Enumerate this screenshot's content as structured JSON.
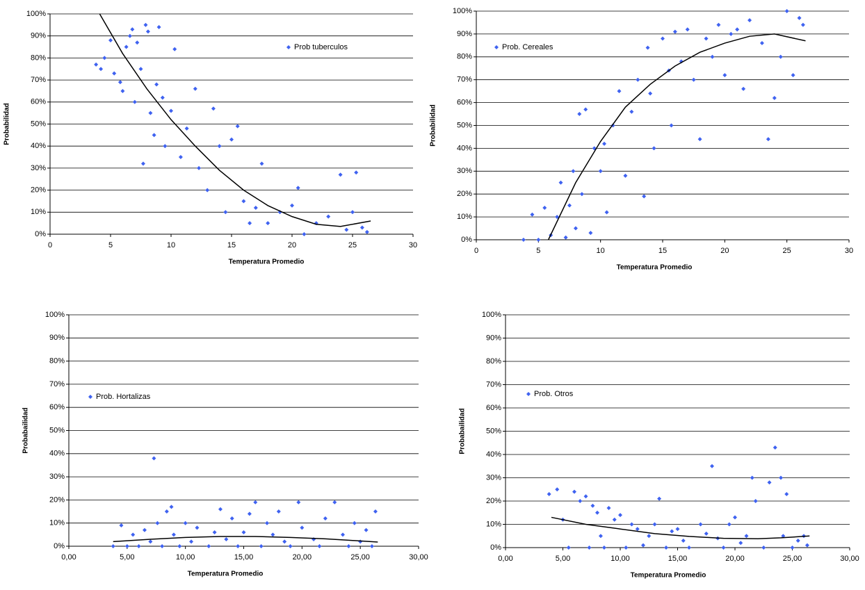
{
  "chart_data": [
    {
      "type": "scatter",
      "x_label": "Temperatura Promedio",
      "y_label": "Probabilidad",
      "grid": true,
      "legend": "upper right",
      "xlim": [
        0,
        30
      ],
      "xticks": [
        0,
        5,
        10,
        15,
        20,
        25,
        30
      ],
      "ylim": [
        0,
        100
      ],
      "yticks": [
        {
          "value": 0,
          "label": "0%"
        },
        {
          "value": 10,
          "label": "10%"
        },
        {
          "value": 20,
          "label": "20%"
        },
        {
          "value": 30,
          "label": "30%"
        },
        {
          "value": 40,
          "label": "40%"
        },
        {
          "value": 50,
          "label": "50%"
        },
        {
          "value": 60,
          "label": "60%"
        },
        {
          "value": 70,
          "label": "70%"
        },
        {
          "value": 80,
          "label": "80%"
        },
        {
          "value": 90,
          "label": "90%"
        },
        {
          "value": 100,
          "label": "100%"
        }
      ],
      "series": [
        {
          "name": "Prob tuberculos",
          "color": "#3f62f0",
          "x": [
            3.8,
            4.2,
            4.5,
            5,
            5.3,
            5.8,
            6,
            6.3,
            6.6,
            6.8,
            7,
            7.2,
            7.5,
            7.7,
            7.9,
            8.1,
            8.3,
            8.6,
            8.8,
            9,
            9.3,
            9.5,
            10,
            10.3,
            10.8,
            11.3,
            12,
            12.3,
            13,
            13.5,
            14,
            14.5,
            15,
            15.5,
            16,
            16.5,
            17,
            17.5,
            18,
            19,
            20,
            20.5,
            21,
            22,
            23,
            24,
            24.5,
            25,
            25.3,
            25.8,
            26.2
          ],
          "values": [
            77,
            75,
            80,
            88,
            73,
            69,
            65,
            85,
            90,
            93,
            60,
            87,
            75,
            32,
            95,
            92,
            55,
            45,
            68,
            94,
            62,
            40,
            56,
            84,
            35,
            48,
            66,
            30,
            20,
            57,
            40,
            10,
            43,
            49,
            15,
            5,
            12,
            32,
            5,
            10,
            13,
            21,
            0,
            5,
            8,
            27,
            2,
            10,
            28,
            3,
            1
          ]
        }
      ],
      "trend": {
        "color": "#000000",
        "x": [
          4.1,
          6,
          8,
          10,
          12,
          14,
          16,
          18,
          20,
          22,
          24,
          26.5
        ],
        "values": [
          100,
          82,
          66,
          52,
          40,
          29,
          20,
          13,
          8,
          4.5,
          3.5,
          6
        ]
      }
    },
    {
      "type": "scatter",
      "x_label": "Temperatura Promedio",
      "y_label": "Probabilidad",
      "grid": true,
      "legend": "upper left",
      "xlim": [
        0,
        30
      ],
      "xticks": [
        0,
        5,
        10,
        15,
        20,
        25,
        30
      ],
      "ylim": [
        0,
        100
      ],
      "yticks": [
        {
          "value": 0,
          "label": "0%"
        },
        {
          "value": 10,
          "label": "10%"
        },
        {
          "value": 20,
          "label": "20%"
        },
        {
          "value": 30,
          "label": "30%"
        },
        {
          "value": 40,
          "label": "40%"
        },
        {
          "value": 50,
          "label": "50%"
        },
        {
          "value": 60,
          "label": "60%"
        },
        {
          "value": 70,
          "label": "70%"
        },
        {
          "value": 80,
          "label": "80%"
        },
        {
          "value": 90,
          "label": "90%"
        },
        {
          "value": 100,
          "label": "100%"
        }
      ],
      "series": [
        {
          "name": "Prob. Cereales",
          "color": "#3f62f0",
          "x": [
            3.8,
            4.5,
            5,
            5.5,
            6,
            6.5,
            6.8,
            7.2,
            7.5,
            7.8,
            8,
            8.3,
            8.5,
            8.8,
            9.2,
            9.5,
            10,
            10.3,
            10.5,
            11,
            11.5,
            12,
            12.5,
            13,
            13.5,
            13.8,
            14,
            14.3,
            15,
            15.5,
            15.7,
            16,
            16.5,
            17,
            17.5,
            18,
            18.5,
            19,
            19.5,
            20,
            20.5,
            21,
            21.5,
            22,
            23,
            23.5,
            24,
            24.5,
            25,
            25.5,
            26,
            26.3
          ],
          "values": [
            0,
            11,
            0,
            14,
            2,
            10,
            25,
            1,
            15,
            30,
            5,
            55,
            20,
            57,
            3,
            40,
            30,
            42,
            12,
            50,
            65,
            28,
            56,
            70,
            19,
            84,
            64,
            40,
            88,
            74,
            50,
            91,
            78,
            92,
            70,
            44,
            88,
            80,
            94,
            72,
            90,
            92,
            66,
            96,
            86,
            44,
            62,
            80,
            100,
            72,
            97,
            94
          ]
        }
      ],
      "trend": {
        "color": "#000000",
        "x": [
          5.8,
          8,
          10,
          12,
          14,
          16,
          18,
          20,
          22,
          24,
          26.5
        ],
        "values": [
          0,
          25,
          43,
          58,
          68,
          76,
          82,
          86,
          89,
          90,
          87
        ]
      }
    },
    {
      "type": "scatter",
      "x_label": "Temperatura Promedio",
      "y_label": "Probabailidad",
      "grid": true,
      "legend": "upper left",
      "xlim": [
        0,
        30
      ],
      "xticks": [
        {
          "value": 0,
          "label": "0,00"
        },
        {
          "value": 5,
          "label": "5,00"
        },
        {
          "value": 10,
          "label": "10,00"
        },
        {
          "value": 15,
          "label": "15,00"
        },
        {
          "value": 20,
          "label": "20,00"
        },
        {
          "value": 25,
          "label": "25,00"
        },
        {
          "value": 30,
          "label": "30,00"
        }
      ],
      "ylim": [
        0,
        100
      ],
      "yticks": [
        {
          "value": 0,
          "label": "0%"
        },
        {
          "value": 10,
          "label": "10%"
        },
        {
          "value": 20,
          "label": "20%"
        },
        {
          "value": 30,
          "label": "30%"
        },
        {
          "value": 40,
          "label": "40%"
        },
        {
          "value": 50,
          "label": "50%"
        },
        {
          "value": 60,
          "label": "60%"
        },
        {
          "value": 70,
          "label": "70%"
        },
        {
          "value": 80,
          "label": "80%"
        },
        {
          "value": 90,
          "label": "90%"
        },
        {
          "value": 100,
          "label": "100%"
        }
      ],
      "series": [
        {
          "name": "Prob. Hortalizas",
          "color": "#3f62f0",
          "x": [
            3.8,
            4.5,
            5,
            5.5,
            6,
            6.5,
            7,
            7.3,
            7.6,
            8,
            8.4,
            8.8,
            9,
            9.5,
            10,
            10.5,
            11,
            12,
            12.5,
            13,
            13.5,
            14,
            14.5,
            15,
            15.5,
            16,
            16.5,
            17,
            17.5,
            18,
            18.5,
            19,
            19.7,
            20,
            21,
            21.5,
            22,
            22.8,
            23.5,
            24,
            24.5,
            25,
            25.5,
            26,
            26.3
          ],
          "values": [
            0,
            9,
            0,
            5,
            0,
            7,
            2,
            38,
            10,
            0,
            15,
            17,
            5,
            0,
            10,
            2,
            8,
            0,
            6,
            16,
            3,
            12,
            0,
            6,
            14,
            19,
            0,
            10,
            5,
            15,
            2,
            0,
            19,
            8,
            3,
            0,
            12,
            19,
            5,
            0,
            10,
            2,
            7,
            0,
            15
          ]
        }
      ],
      "trend": {
        "color": "#000000",
        "x": [
          3.8,
          7,
          10,
          13,
          16,
          19,
          22,
          24,
          26.5
        ],
        "values": [
          2,
          3,
          3.8,
          4.2,
          4.2,
          3.8,
          3.2,
          2.6,
          1.8
        ]
      }
    },
    {
      "type": "scatter",
      "x_label": "Temperatura Promedio",
      "y_label": "Probabailidad",
      "grid": true,
      "legend": "upper left",
      "xlim": [
        0,
        30
      ],
      "xticks": [
        {
          "value": 0,
          "label": "0,00"
        },
        {
          "value": 5,
          "label": "5,00"
        },
        {
          "value": 10,
          "label": "10,00"
        },
        {
          "value": 15,
          "label": "15,00"
        },
        {
          "value": 20,
          "label": "20,00"
        },
        {
          "value": 25,
          "label": "25,00"
        },
        {
          "value": 30,
          "label": "30,00"
        }
      ],
      "ylim": [
        0,
        100
      ],
      "yticks": [
        {
          "value": 0,
          "label": "0%"
        },
        {
          "value": 10,
          "label": "10%"
        },
        {
          "value": 20,
          "label": "20%"
        },
        {
          "value": 30,
          "label": "30%"
        },
        {
          "value": 40,
          "label": "40%"
        },
        {
          "value": 50,
          "label": "50%"
        },
        {
          "value": 60,
          "label": "60%"
        },
        {
          "value": 70,
          "label": "70%"
        },
        {
          "value": 80,
          "label": "80%"
        },
        {
          "value": 90,
          "label": "90%"
        },
        {
          "value": 100,
          "label": "100%"
        }
      ],
      "series": [
        {
          "name": "Prob. Otros",
          "color": "#3f62f0",
          "x": [
            3.8,
            4.5,
            5,
            5.5,
            6,
            6.5,
            7,
            7.3,
            7.6,
            8,
            8.3,
            8.6,
            9,
            9.5,
            10,
            10.5,
            11,
            11.5,
            12,
            12.5,
            13,
            13.4,
            14,
            14.5,
            15,
            15.5,
            16,
            17,
            17.5,
            18,
            18.5,
            19,
            19.5,
            20,
            20.5,
            21,
            21.5,
            21.8,
            22.5,
            23,
            23.5,
            24,
            24.2,
            24.5,
            25,
            25.5,
            26,
            26.3
          ],
          "values": [
            23,
            25,
            12,
            0,
            24,
            20,
            22,
            0,
            18,
            15,
            5,
            0,
            17,
            12,
            14,
            0,
            10,
            8,
            1,
            5,
            10,
            21,
            0,
            7,
            8,
            3,
            0,
            10,
            6,
            35,
            4,
            0,
            10,
            13,
            2,
            5,
            30,
            20,
            0,
            28,
            43,
            30,
            5,
            23,
            0,
            3,
            5,
            1
          ]
        }
      ],
      "trend": {
        "color": "#000000",
        "x": [
          4,
          7,
          10,
          13,
          16,
          19,
          22,
          24,
          26.5
        ],
        "values": [
          13,
          10,
          8,
          6,
          4.8,
          4,
          3.8,
          4.2,
          5
        ]
      }
    }
  ]
}
